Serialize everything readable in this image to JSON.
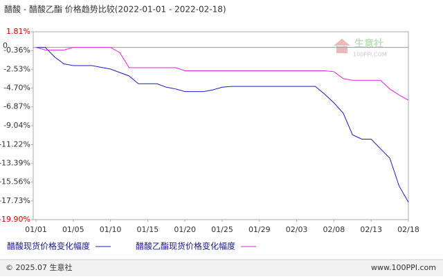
{
  "chart_data": {
    "type": "line",
    "title": "醋酸 - 醋酸乙酯 价格趋势比较(2022-01-01 - 2022-02-18)",
    "categories": [
      "01/01",
      null,
      null,
      null,
      "01/05",
      null,
      null,
      null,
      "01/10",
      null,
      null,
      null,
      "01/15",
      null,
      null,
      null,
      "01/20",
      null,
      null,
      null,
      "01/25",
      null,
      null,
      null,
      "01/29",
      null,
      null,
      null,
      "02/03",
      null,
      null,
      null,
      "02/08",
      null,
      null,
      null,
      "02/13",
      null,
      null,
      null,
      "02/18"
    ],
    "series": [
      {
        "name": "醋酸现货价格变化幅度",
        "color": "#1a1acc",
        "values": [
          0,
          0,
          -1.1,
          -1.9,
          -2.1,
          -2.1,
          -2.1,
          -2.3,
          -2.5,
          -2.9,
          -3.3,
          -4.2,
          -4.2,
          -4.2,
          -4.6,
          -4.8,
          -5.1,
          -5.1,
          -5.1,
          -4.9,
          -4.6,
          -4.5,
          -4.5,
          -4.5,
          -4.5,
          -4.5,
          -4.5,
          -4.5,
          -4.5,
          -4.5,
          -4.5,
          -5.4,
          -6.4,
          -7.6,
          -10.1,
          -10.6,
          -10.6,
          -11.7,
          -12.8,
          -16.0,
          -17.9
        ]
      },
      {
        "name": "醋酸乙酯现货价格变化幅度",
        "color": "#dd22dd",
        "values": [
          0,
          -0.3,
          -0.3,
          -0.3,
          0,
          0,
          0,
          0,
          0,
          -0.6,
          -2.34,
          -2.34,
          -2.34,
          -2.34,
          -2.34,
          -2.34,
          -2.7,
          -2.7,
          -2.7,
          -2.7,
          -2.7,
          -2.7,
          -2.7,
          -2.7,
          -2.7,
          -2.7,
          -2.7,
          -2.7,
          -2.7,
          -2.7,
          -2.7,
          -2.7,
          -2.8,
          -3.6,
          -3.8,
          -3.8,
          -3.8,
          -3.8,
          -4.8,
          -5.5,
          -6.1
        ]
      }
    ],
    "ylim": [
      -19.9,
      1.81
    ],
    "yticks": [
      {
        "value": 1.81,
        "label": "1.81%"
      },
      {
        "value": -0.36,
        "label": "-0.36%"
      },
      {
        "value": -2.53,
        "label": "-2.53%"
      },
      {
        "value": -4.7,
        "label": "-4.70%"
      },
      {
        "value": -6.87,
        "label": "-6.87%"
      },
      {
        "value": -9.04,
        "label": "-9.04%"
      },
      {
        "value": -11.22,
        "label": "-11.22%"
      },
      {
        "value": -13.39,
        "label": "-13.39%"
      },
      {
        "value": -15.56,
        "label": "-15.56%"
      },
      {
        "value": -17.73,
        "label": "-17.73%"
      },
      {
        "value": -19.9,
        "label": "-19.90%"
      }
    ],
    "zero_line": {
      "value": 0,
      "label": "0"
    },
    "grid": false,
    "watermark": [
      "生意社",
      "100PPI.COM"
    ]
  },
  "footer": {
    "left": "© 2025.07 生意社",
    "right": "www.100PPI.com"
  }
}
